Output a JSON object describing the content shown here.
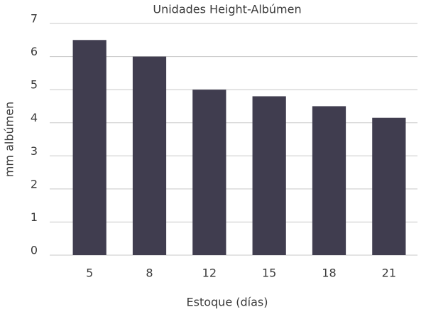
{
  "chart_data": {
    "type": "bar",
    "title": "Unidades Height-Albúmen",
    "x_label": "Estoque (días)",
    "y_label": "mm albúmen",
    "categories": [
      "5",
      "8",
      "12",
      "15",
      "18",
      "21"
    ],
    "values": [
      6.5,
      6.0,
      5.0,
      4.8,
      4.5,
      4.15
    ],
    "color": "#403d4f",
    "ylim": [
      0,
      7
    ],
    "yticks": [
      0,
      1,
      2,
      3,
      4,
      5,
      6,
      7
    ],
    "grid": true
  }
}
